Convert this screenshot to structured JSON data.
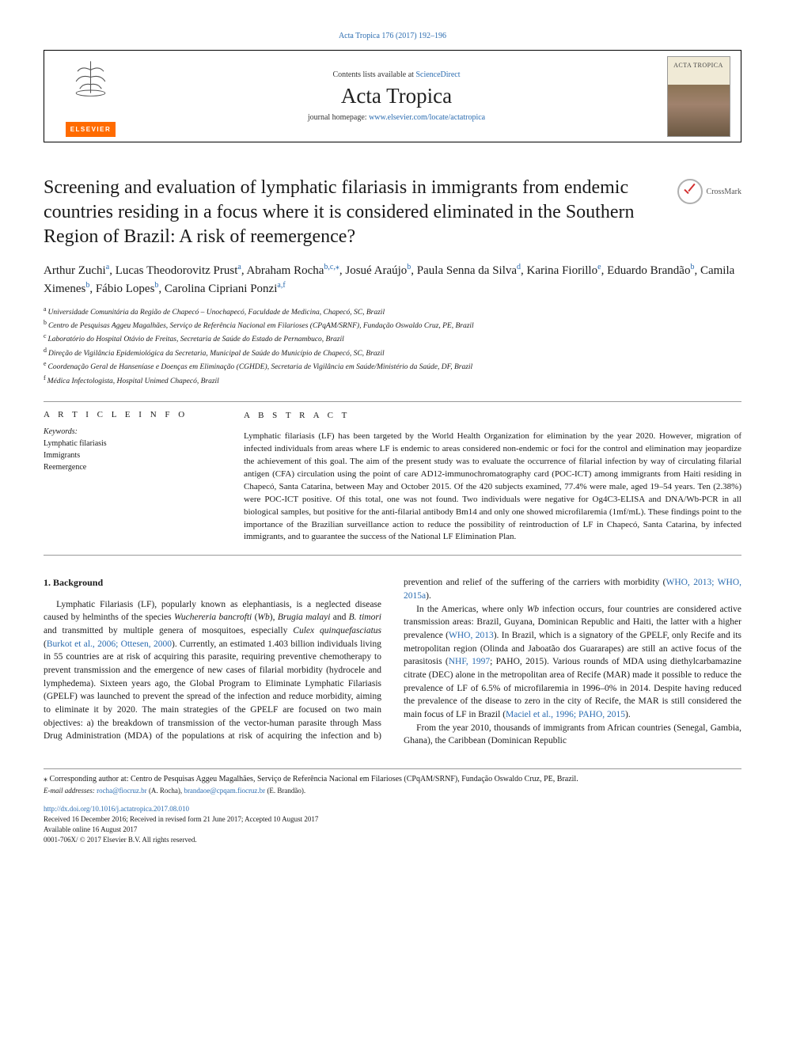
{
  "runningHead": "Acta Tropica 176 (2017) 192–196",
  "masthead": {
    "contentsLine_pre": "Contents lists available at ",
    "contentsLine_link": "ScienceDirect",
    "journalTitle": "Acta Tropica",
    "homepage_pre": "journal homepage: ",
    "homepage_link": "www.elsevier.com/locate/actatropica",
    "publisherName": "ELSEVIER",
    "coverTitle": "ACTA TROPICA"
  },
  "crossmarkLabel": "CrossMark",
  "title": "Screening and evaluation of lymphatic filariasis in immigrants from endemic countries residing in a focus where it is considered eliminated in the Southern Region of Brazil: A risk of reemergence?",
  "authorsHtmlParts": [
    {
      "name": "Arthur Zuchi",
      "sup": "a"
    },
    {
      "name": "Lucas Theodorovitz Prust",
      "sup": "a"
    },
    {
      "name": "Abraham Rocha",
      "sup": "b,c,⁎"
    },
    {
      "name": "Josué Araújo",
      "sup": "b"
    },
    {
      "name": "Paula Senna da Silva",
      "sup": "d"
    },
    {
      "name": "Karina Fiorillo",
      "sup": "e"
    },
    {
      "name": "Eduardo Brandão",
      "sup": "b"
    },
    {
      "name": "Camila Ximenes",
      "sup": "b"
    },
    {
      "name": "Fábio Lopes",
      "sup": "b"
    },
    {
      "name": "Carolina Cipriani Ponzi",
      "sup": "a,f"
    }
  ],
  "affiliations": [
    {
      "sup": "a",
      "text": "Universidade Comunitária da Região de Chapecó – Unochapecó, Faculdade de Medicina, Chapecó, SC, Brazil"
    },
    {
      "sup": "b",
      "text": "Centro de Pesquisas Aggeu Magalhães, Serviço de Referência Nacional em Filarioses (CPqAM/SRNF), Fundação Oswaldo Cruz, PE, Brazil"
    },
    {
      "sup": "c",
      "text": "Laboratório do Hospital Otávio de Freitas, Secretaria de Saúde do Estado de Pernambuco, Brazil"
    },
    {
      "sup": "d",
      "text": "Direção de Vigilância Epidemiológica da Secretaria, Municipal de Saúde do Município de Chapecó, SC, Brazil"
    },
    {
      "sup": "e",
      "text": "Coordenação Geral de Hanseníase e Doenças em Eliminação (CGHDE), Secretaria de Vigilância em Saúde/Ministério da Saúde, DF, Brazil"
    },
    {
      "sup": "f",
      "text": "Médica Infectologista, Hospital Unimed Chapecó, Brazil"
    }
  ],
  "articleInfo": {
    "label": "A R T I C L E  I N F O",
    "kwLabel": "Keywords:",
    "keywords": [
      "Lymphatic filariasis",
      "Immigrants",
      "Reemergence"
    ]
  },
  "abstract": {
    "label": "A B S T R A C T",
    "text": "Lymphatic filariasis (LF) has been targeted by the World Health Organization for elimination by the year 2020. However, migration of infected individuals from areas where LF is endemic to areas considered non-endemic or foci for the control and elimination may jeopardize the achievement of this goal. The aim of the present study was to evaluate the occurrence of filarial infection by way of circulating filarial antigen (CFA) circulation using the point of care AD12-immunochromatography card (POC-ICT) among immigrants from Haiti residing in Chapecó, Santa Catarina, between May and October 2015. Of the 420 subjects examined, 77.4% were male, aged 19–54 years. Ten (2.38%) were POC-ICT positive. Of this total, one was not found. Two individuals were negative for Og4C3-ELISA and DNA/Wb-PCR in all biological samples, but positive for the anti-filarial antibody Bm14 and only one showed microfilaremia (1mf/mL). These findings point to the importance of the Brazilian surveillance action to reduce the possibility of reintroduction of LF in Chapecó, Santa Catarina, by infected immigrants, and to guarantee the success of the National LF Elimination Plan."
  },
  "body": {
    "heading": "1. Background",
    "col1p1_a": "Lymphatic Filariasis (LF), popularly known as elephantiasis, is a neglected disease caused by helminths of the species ",
    "col1p1_i1": "Wuchereria bancrofti",
    "col1p1_b": " (",
    "col1p1_i2": "Wb",
    "col1p1_c": "), ",
    "col1p1_i3": "Brugia malayi",
    "col1p1_d": " and ",
    "col1p1_i4": "B. timori",
    "col1p1_e": " and transmitted by multiple genera of mosquitoes, especially ",
    "col1p1_i5": "Culex quinquefasciatus",
    "col1p1_f": " (",
    "col1p1_cite1": "Burkot et al., 2006; Ottesen, 2000",
    "col1p1_g": "). Currently, an estimated 1.403 billion individuals living in 55 countries are at risk of acquiring this parasite, requiring preventive chemotherapy to prevent transmission and the emergence of new cases of filarial morbidity (hydrocele and lymphedema). Sixteen years ago, the Global Program to Eliminate Lymphatic Filariasis (GPELF) was launched to prevent the spread of the infection and reduce morbidity, aiming to eliminate it by 2020. The main strategies of the GPELF are focused on two main objectives: a) the breakdown of transmission of the vector-human parasite through Mass Drug Administration (MDA) of the populations at risk of acquiring the infection and",
    "col2p1_a": "b) prevention and relief of the suffering of the carriers with morbidity (",
    "col2p1_cite1": "WHO, 2013; WHO, 2015a",
    "col2p1_b": ").",
    "col2p2_a": "In the Americas, where only ",
    "col2p2_i1": "Wb",
    "col2p2_b": " infection occurs, four countries are considered active transmission areas: Brazil, Guyana, Dominican Republic and Haiti, the latter with a higher prevalence (",
    "col2p2_cite1": "WHO, 2013",
    "col2p2_c": "). In Brazil, which is a signatory of the GPELF, only Recife and its metropolitan region (Olinda and Jaboatão dos Guararapes) are still an active focus of the parasitosis (",
    "col2p2_cite2": "NHF, 1997",
    "col2p2_d": "; PAHO, 2015). Various rounds of MDA using diethylcarbamazine citrate (DEC) alone in the metropolitan area of Recife (MAR) made it possible to reduce the prevalence of LF of 6.5% of microfilaremia in 1996–0% in 2014. Despite having reduced the prevalence of the disease to zero in the city of Recife, the MAR is still considered the main focus of LF in Brazil (",
    "col2p2_cite3": "Maciel et al., 1996; PAHO, 2015",
    "col2p2_e": ").",
    "col2p3": "From the year 2010, thousands of immigrants from African countries (Senegal, Gambia, Ghana), the Caribbean (Dominican Republic"
  },
  "footnotes": {
    "corr": "⁎ Corresponding author at: Centro de Pesquisas Aggeu Magalhães, Serviço de Referência Nacional em Filarioses (CPqAM/SRNF), Fundação Oswaldo Cruz, PE, Brazil.",
    "emailLabel": "E-mail addresses:",
    "email1": "rocha@fiocruz.br",
    "email1_who": " (A. Rocha), ",
    "email2": "brandaoe@cpqam.fiocruz.br",
    "email2_who": " (E. Brandão).",
    "doi": "http://dx.doi.org/10.1016/j.actatropica.2017.08.010",
    "received": "Received 16 December 2016; Received in revised form 21 June 2017; Accepted 10 August 2017",
    "available": "Available online 16 August 2017",
    "copyright": "0001-706X/ © 2017 Elsevier B.V. All rights reserved."
  },
  "colors": {
    "link": "#2b6cb0",
    "publisherOrange": "#ff6b00"
  }
}
